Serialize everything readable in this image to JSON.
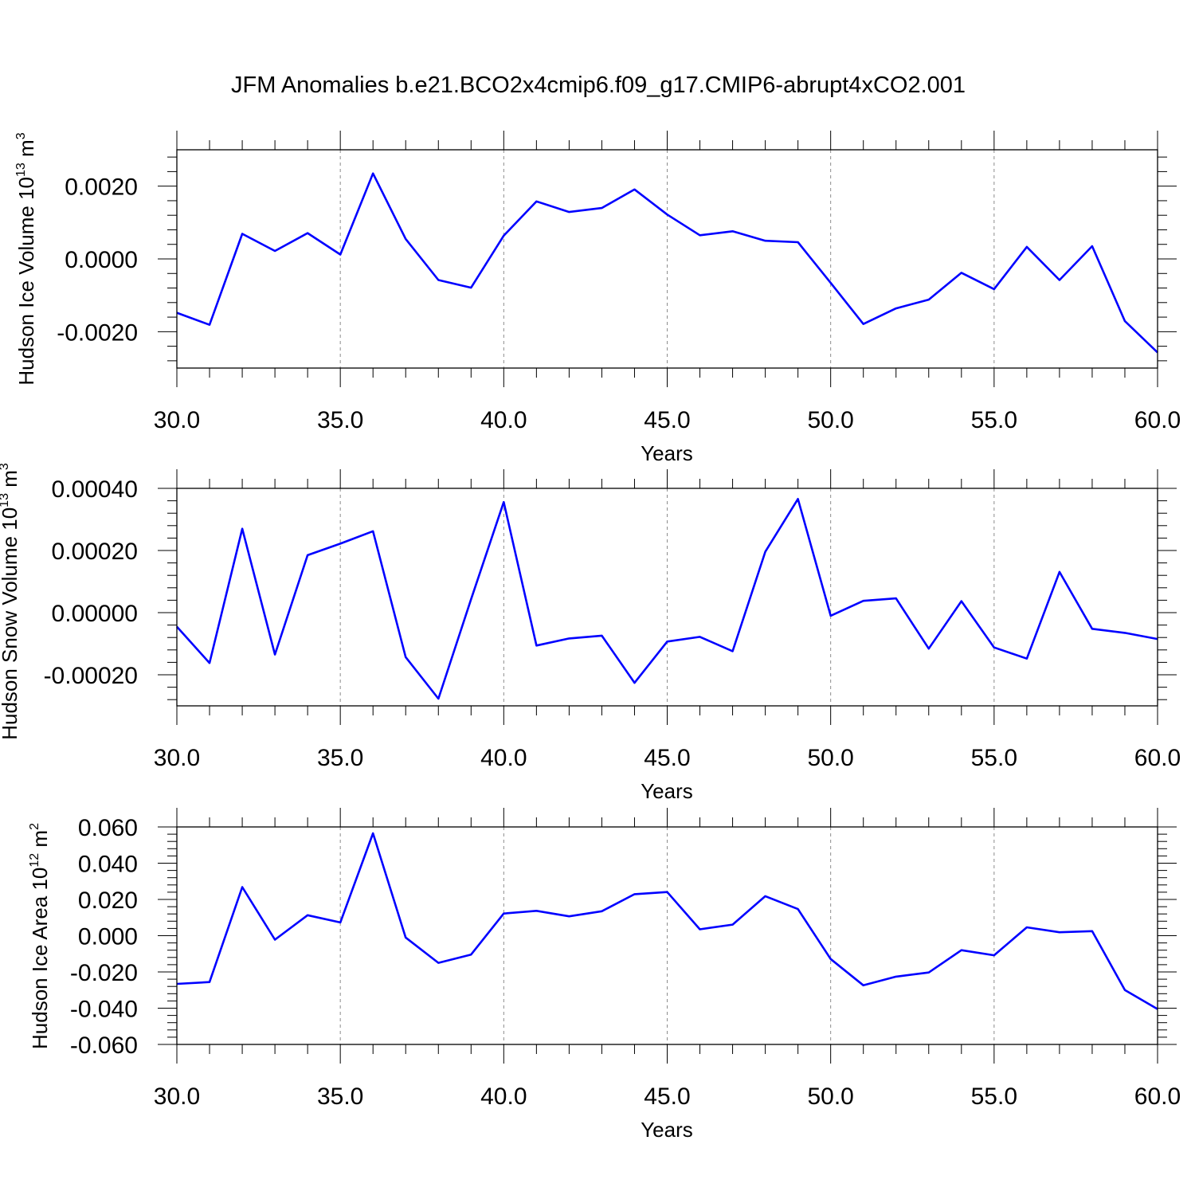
{
  "title": "JFM Anomalies b.e21.BCO2x4cmip6.f09_g17.CMIP6-abrupt4xCO2.001",
  "line_color": "#0000ff",
  "chart_data": [
    {
      "type": "line",
      "xlabel": "Years",
      "ylabel": {
        "text": "Hudson Ice Volume 10",
        "exponent": "13",
        "unit": "m",
        "unit_exponent": "3"
      },
      "xlim": [
        30,
        60
      ],
      "ylim": [
        -0.003,
        0.003
      ],
      "xticks": [
        "30.0",
        "35.0",
        "40.0",
        "45.0",
        "50.0",
        "55.0",
        "60.0"
      ],
      "yticks": [
        {
          "value": 0.002,
          "label": "0.0020"
        },
        {
          "value": 0.0,
          "label": "0.0000"
        },
        {
          "value": -0.002,
          "label": "-0.0020"
        }
      ],
      "grid": "dashed vertical at major x ticks",
      "series": [
        {
          "x": [
            30,
            31,
            32,
            33,
            34,
            35,
            36,
            37,
            38,
            39,
            40,
            41,
            42,
            43,
            44,
            45,
            46,
            47,
            48,
            49,
            50,
            51,
            52,
            53,
            54,
            55,
            56,
            57,
            58,
            59,
            60
          ],
          "values": [
            -0.00148,
            -0.00181,
            0.00069,
            0.00022,
            0.00071,
            0.00012,
            0.00235,
            0.00055,
            -0.00058,
            -0.00079,
            0.00064,
            0.00158,
            0.00129,
            0.0014,
            0.00191,
            0.00122,
            0.00065,
            0.00076,
            0.0005,
            0.00046,
            -0.00066,
            -0.00179,
            -0.00136,
            -0.00112,
            -0.00038,
            -0.00083,
            0.00033,
            -0.00058,
            0.00035,
            -0.00171,
            -0.00257
          ]
        }
      ]
    },
    {
      "type": "line",
      "xlabel": "Years",
      "ylabel": {
        "text": "Hudson Snow Volume 10",
        "exponent": "13",
        "unit": "m",
        "unit_exponent": "3"
      },
      "xlim": [
        30,
        60
      ],
      "ylim": [
        -0.0003,
        0.0004
      ],
      "xticks": [
        "30.0",
        "35.0",
        "40.0",
        "45.0",
        "50.0",
        "55.0",
        "60.0"
      ],
      "yticks": [
        {
          "value": 0.0004,
          "label": "0.00040"
        },
        {
          "value": 0.0002,
          "label": "0.00020"
        },
        {
          "value": 0.0,
          "label": "0.00000"
        },
        {
          "value": -0.0002,
          "label": "-0.00020"
        }
      ],
      "grid": "dashed vertical at major x ticks",
      "series": [
        {
          "x": [
            30,
            31,
            32,
            33,
            34,
            35,
            36,
            37,
            38,
            39,
            40,
            41,
            42,
            43,
            44,
            45,
            46,
            47,
            48,
            49,
            50,
            51,
            52,
            53,
            54,
            55,
            56,
            57,
            58,
            59,
            60
          ],
          "values": [
            -4.5e-05,
            -0.000162,
            0.00027,
            -0.000135,
            0.000185,
            0.000222,
            0.000262,
            -0.000143,
            -0.000277,
            4.3e-05,
            0.000356,
            -0.000106,
            -8.3e-05,
            -7.4e-05,
            -0.000226,
            -9.3e-05,
            -7.8e-05,
            -0.000124,
            0.000196,
            0.000366,
            -1e-05,
            3.8e-05,
            4.6e-05,
            -0.000116,
            3.7e-05,
            -0.000112,
            -0.000148,
            0.000131,
            -5.2e-05,
            -6.5e-05,
            -8.5e-05
          ]
        }
      ]
    },
    {
      "type": "line",
      "xlabel": "Years",
      "ylabel": {
        "text": "Hudson Ice Area 10",
        "exponent": "12",
        "unit": "m",
        "unit_exponent": "2"
      },
      "xlim": [
        30,
        60
      ],
      "ylim": [
        -0.06,
        0.06
      ],
      "xticks": [
        "30.0",
        "35.0",
        "40.0",
        "45.0",
        "50.0",
        "55.0",
        "60.0"
      ],
      "yticks": [
        {
          "value": 0.06,
          "label": "0.060"
        },
        {
          "value": 0.04,
          "label": "0.040"
        },
        {
          "value": 0.02,
          "label": "0.020"
        },
        {
          "value": 0.0,
          "label": "0.000"
        },
        {
          "value": -0.02,
          "label": "-0.020"
        },
        {
          "value": -0.04,
          "label": "-0.040"
        },
        {
          "value": -0.06,
          "label": "-0.060"
        }
      ],
      "grid": "dashed vertical at major x ticks",
      "series": [
        {
          "x": [
            30,
            31,
            32,
            33,
            34,
            35,
            36,
            37,
            38,
            39,
            40,
            41,
            42,
            43,
            44,
            45,
            46,
            47,
            48,
            49,
            50,
            51,
            52,
            53,
            54,
            55,
            56,
            57,
            58,
            59,
            60
          ],
          "values": [
            -0.0266,
            -0.0256,
            0.0268,
            -0.0022,
            0.0113,
            0.0073,
            0.0565,
            -0.001,
            -0.015,
            -0.0104,
            0.0122,
            0.0137,
            0.0107,
            0.0135,
            0.0229,
            0.0241,
            0.0035,
            0.0061,
            0.0218,
            0.0147,
            -0.0129,
            -0.0274,
            -0.0226,
            -0.0203,
            -0.008,
            -0.0108,
            0.0046,
            0.0019,
            0.0025,
            -0.03,
            -0.0405
          ]
        }
      ]
    }
  ]
}
